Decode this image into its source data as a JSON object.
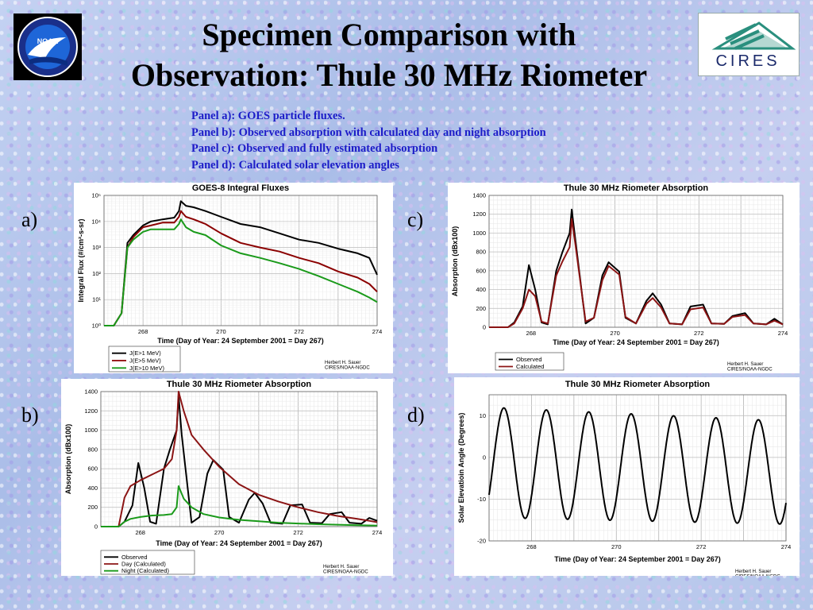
{
  "page": {
    "title_line1": "Specimen Comparison with",
    "title_line2": "Observation: Thule 30 MHz Riometer",
    "descriptions": [
      "Panel a): GOES particle fluxes.",
      "Panel b): Observed absorption with calculated day and night absorption",
      "Panel c): Observed and fully estimated absorption",
      "Panel d): Calculated solar elevation angles"
    ],
    "panel_labels": [
      "a)",
      "b)",
      "c)",
      "d)"
    ],
    "logos": {
      "left": "NOAA",
      "right": "CIRES"
    },
    "colors": {
      "background": "#b9c8ec",
      "description_text": "#1c1cc8"
    }
  },
  "chart_data": [
    {
      "id": "a",
      "type": "line",
      "title": "GOES-8  Integral Fluxes",
      "xlabel": "Time  (Day of Year:  24 September 2001 = Day 267)",
      "ylabel": "Integral Flux  (#/cm²-s-sr)",
      "y_scale": "log",
      "xlim": [
        267,
        274
      ],
      "ylim": [
        1,
        100000
      ],
      "x_ticks": [
        "268",
        "270",
        "272",
        "274"
      ],
      "y_ticks": [
        "10⁰",
        "10¹",
        "10²",
        "10³",
        "10⁴",
        "10⁵"
      ],
      "grid": true,
      "legend_position": "bottom-left",
      "credit": [
        "Herbert H. Sauer",
        "CIRES/NOAA-NGDC"
      ],
      "series": [
        {
          "name": "J(E>1 MeV)",
          "color": "#000000",
          "x": [
            267.0,
            267.25,
            267.45,
            267.6,
            267.75,
            268.0,
            268.2,
            268.5,
            268.8,
            268.92,
            268.97,
            269.1,
            269.3,
            269.6,
            270.0,
            270.5,
            271.0,
            271.5,
            272.0,
            272.5,
            273.0,
            273.5,
            273.8,
            274.0
          ],
          "y": [
            1,
            1,
            3,
            1500,
            3000,
            7000,
            10000,
            12000,
            14000,
            25000,
            60000,
            40000,
            35000,
            25000,
            15000,
            8000,
            6000,
            3500,
            2000,
            1500,
            900,
            600,
            400,
            90
          ]
        },
        {
          "name": "J(E>5 MeV)",
          "color": "#8b0000",
          "x": [
            267.0,
            267.25,
            267.45,
            267.6,
            267.75,
            268.0,
            268.2,
            268.5,
            268.8,
            268.92,
            268.97,
            269.1,
            269.3,
            269.6,
            270.0,
            270.5,
            271.0,
            271.5,
            272.0,
            272.5,
            273.0,
            273.5,
            273.8,
            274.0
          ],
          "y": [
            1,
            1,
            3,
            1000,
            2500,
            6000,
            7000,
            9000,
            9000,
            15000,
            25000,
            15000,
            12000,
            8000,
            3500,
            1500,
            1000,
            700,
            400,
            250,
            120,
            70,
            40,
            20
          ]
        },
        {
          "name": "J(E>10 MeV)",
          "color": "#1a9a1a",
          "x": [
            267.0,
            267.25,
            267.45,
            267.6,
            267.75,
            268.0,
            268.2,
            268.5,
            268.8,
            268.92,
            268.97,
            269.1,
            269.3,
            269.6,
            270.0,
            270.5,
            271.0,
            271.5,
            272.0,
            272.5,
            273.0,
            273.5,
            273.8,
            274.0
          ],
          "y": [
            1,
            1,
            3,
            1000,
            2000,
            4000,
            5000,
            5000,
            5000,
            8000,
            12000,
            6000,
            4000,
            3000,
            1200,
            600,
            400,
            250,
            150,
            80,
            40,
            20,
            12,
            8
          ]
        }
      ]
    },
    {
      "id": "b",
      "type": "line",
      "title": "Thule 30 MHz Riometer Absorption",
      "xlabel": "Time  (Day of Year:  24 September 2001 = Day 267)",
      "ylabel": "Absorption   (dBx100)",
      "xlim": [
        267,
        274
      ],
      "ylim": [
        0,
        1400
      ],
      "x_ticks": [
        "268",
        "270",
        "272",
        "274"
      ],
      "y_ticks": [
        "0",
        "200",
        "400",
        "600",
        "800",
        "1000",
        "1200",
        "1400"
      ],
      "grid": true,
      "legend_position": "bottom-left",
      "credit": [
        "Herbert H. Sauer",
        "CIRES/NOAA-NGDC"
      ],
      "series": [
        {
          "name": "Observed",
          "color": "#000000",
          "x": [
            267.0,
            267.45,
            267.6,
            267.8,
            267.95,
            268.1,
            268.25,
            268.4,
            268.6,
            268.75,
            268.92,
            268.97,
            269.05,
            269.3,
            269.5,
            269.7,
            269.85,
            270.1,
            270.25,
            270.5,
            270.75,
            270.9,
            271.1,
            271.3,
            271.6,
            271.8,
            272.1,
            272.3,
            272.6,
            272.8,
            273.1,
            273.3,
            273.6,
            273.8,
            274.0
          ],
          "y": [
            0,
            0,
            50,
            220,
            660,
            400,
            50,
            30,
            600,
            800,
            1000,
            1350,
            950,
            40,
            100,
            550,
            690,
            590,
            100,
            40,
            280,
            350,
            240,
            40,
            30,
            220,
            230,
            40,
            35,
            130,
            150,
            40,
            30,
            90,
            60
          ]
        },
        {
          "name": "Day  (Calculated)",
          "color": "#8b1414",
          "x": [
            267.0,
            267.45,
            267.6,
            267.75,
            268.0,
            268.3,
            268.6,
            268.8,
            268.92,
            268.97,
            269.1,
            269.3,
            269.6,
            270.0,
            270.5,
            271.0,
            271.5,
            272.0,
            272.5,
            273.0,
            273.5,
            273.8,
            274.0
          ],
          "y": [
            0,
            0,
            300,
            420,
            480,
            540,
            600,
            700,
            1000,
            1400,
            1200,
            950,
            800,
            620,
            440,
            330,
            260,
            200,
            150,
            110,
            80,
            60,
            45
          ]
        },
        {
          "name": "Night  (Calculated)",
          "color": "#1a9a1a",
          "x": [
            267.0,
            267.45,
            267.6,
            267.75,
            268.0,
            268.3,
            268.6,
            268.8,
            268.92,
            268.97,
            269.1,
            269.3,
            269.6,
            270.0,
            270.5,
            271.0,
            271.5,
            272.0,
            272.5,
            273.0,
            273.5,
            273.8,
            274.0
          ],
          "y": [
            0,
            0,
            50,
            80,
            100,
            115,
            120,
            130,
            200,
            420,
            290,
            200,
            130,
            95,
            70,
            55,
            40,
            32,
            25,
            20,
            15,
            12,
            10
          ]
        }
      ]
    },
    {
      "id": "c",
      "type": "line",
      "title": "Thule 30 MHz Riometer Absorption",
      "xlabel": "Time  (Day of Year:  24 September 2001 = Day 267)",
      "ylabel": "Absorption   (dBx100)",
      "xlim": [
        267,
        274
      ],
      "ylim": [
        0,
        1400
      ],
      "x_ticks": [
        "268",
        "270",
        "272",
        "274"
      ],
      "y_ticks": [
        "0",
        "200",
        "400",
        "600",
        "800",
        "1000",
        "1200",
        "1400"
      ],
      "grid": true,
      "legend_position": "bottom-left",
      "credit": [
        "Herbert H. Sauer",
        "CIRES/NOAA-NGDC"
      ],
      "series": [
        {
          "name": "Observed",
          "color": "#000000",
          "x": [
            267.0,
            267.45,
            267.6,
            267.8,
            267.95,
            268.1,
            268.25,
            268.4,
            268.6,
            268.75,
            268.92,
            268.97,
            269.05,
            269.3,
            269.5,
            269.7,
            269.85,
            270.1,
            270.25,
            270.5,
            270.75,
            270.9,
            271.1,
            271.3,
            271.6,
            271.8,
            272.1,
            272.3,
            272.6,
            272.8,
            273.1,
            273.3,
            273.6,
            273.8,
            274.0
          ],
          "y": [
            0,
            0,
            50,
            220,
            660,
            400,
            50,
            30,
            600,
            800,
            1000,
            1250,
            950,
            40,
            100,
            550,
            690,
            590,
            100,
            40,
            280,
            360,
            240,
            40,
            30,
            220,
            240,
            40,
            35,
            120,
            150,
            40,
            30,
            90,
            30
          ]
        },
        {
          "name": "Calculated",
          "color": "#8b1414",
          "x": [
            267.0,
            267.45,
            267.6,
            267.8,
            267.95,
            268.1,
            268.25,
            268.4,
            268.6,
            268.75,
            268.92,
            268.97,
            269.05,
            269.3,
            269.5,
            269.7,
            269.85,
            270.1,
            270.25,
            270.5,
            270.75,
            270.9,
            271.1,
            271.3,
            271.6,
            271.8,
            272.1,
            272.3,
            272.6,
            272.8,
            273.1,
            273.3,
            273.6,
            273.8,
            274.0
          ],
          "y": [
            0,
            0,
            40,
            200,
            400,
            330,
            60,
            40,
            550,
            700,
            850,
            1150,
            900,
            60,
            100,
            500,
            650,
            560,
            110,
            40,
            250,
            310,
            210,
            40,
            30,
            190,
            210,
            40,
            35,
            110,
            130,
            40,
            30,
            70,
            30
          ]
        }
      ]
    },
    {
      "id": "d",
      "type": "line",
      "title": "Thule 30 MHz Riometer Absorption",
      "xlabel": "Time  (Day of Year:  24 September 2001 = Day 267)",
      "ylabel": "Solar Elevatioin Angle  (Degrees)",
      "xlim": [
        267,
        274
      ],
      "ylim": [
        -20,
        15
      ],
      "x_ticks": [
        "268",
        "270",
        "272",
        "274"
      ],
      "y_ticks": [
        "-20",
        "-10",
        "0",
        "10"
      ],
      "grid": true,
      "credit": [
        "Herbert H. Sauer",
        "CIRES/NOAA-NGDC"
      ],
      "series": [
        {
          "name": "",
          "color": "#000000",
          "wave": {
            "mean": -1.2,
            "amplitude": 13.2,
            "amplitude_decay_per_day": 0.12,
            "mean_drift_per_day": -0.35,
            "period_days": 1.0,
            "peak_day": 267.35
          }
        }
      ]
    }
  ]
}
